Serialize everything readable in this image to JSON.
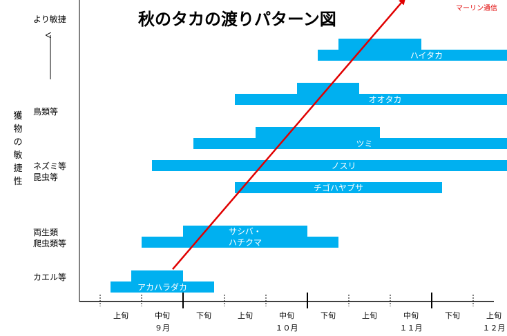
{
  "chart_data": {
    "type": "bar",
    "title": "秋のタカの渡りパターン図",
    "watermark": "マーリン通信",
    "ylabel": "獲物の敏捷性",
    "y_top_label": "より敏捷",
    "y_category_labels": [
      "鳥類等",
      "ネズミ等",
      "昆虫等",
      "両生類",
      "爬虫類等",
      "カエル等"
    ],
    "x_period_labels": [
      "上旬",
      "中旬",
      "下旬",
      "上旬",
      "中旬",
      "下旬",
      "上旬",
      "中旬",
      "下旬",
      "上旬"
    ],
    "x_month_labels": [
      "９月",
      "１０月",
      "１１月",
      "１２月"
    ],
    "x_unit": "旬 (9月上旬 = 0)",
    "xlim": [
      0,
      10
    ],
    "bar_color": "#00b0f0",
    "arrow_color": "#e00000",
    "trend_arrow": {
      "from": [
        1.25,
        0.3
      ],
      "to": [
        6.85,
        7.3
      ]
    },
    "series": [
      {
        "name": "ハイタカ",
        "segments": [
          [
            4.75,
            10,
            0
          ],
          [
            5.25,
            7.25,
            1
          ]
        ]
      },
      {
        "name": "オオタカ",
        "segments": [
          [
            2.75,
            10,
            0
          ],
          [
            4.25,
            5.75,
            1
          ]
        ]
      },
      {
        "name": "ツミ",
        "segments": [
          [
            1.75,
            10,
            0
          ],
          [
            3.25,
            6.25,
            1
          ]
        ]
      },
      {
        "name": "ノスリ",
        "segments": [
          [
            0.75,
            10,
            0
          ]
        ]
      },
      {
        "name": "チゴハヤブサ",
        "segments": [
          [
            2.75,
            7.75,
            0
          ]
        ]
      },
      {
        "name": "サシバ・ハチクマ",
        "label_lines": [
          "サシバ・",
          "ハチクマ"
        ],
        "segments": [
          [
            0.5,
            5.25,
            0
          ],
          [
            1.5,
            4.5,
            1
          ]
        ]
      },
      {
        "name": "アカハラダカ",
        "segments": [
          [
            -0.25,
            2.25,
            0
          ],
          [
            0.25,
            1.5,
            1
          ]
        ]
      }
    ]
  }
}
